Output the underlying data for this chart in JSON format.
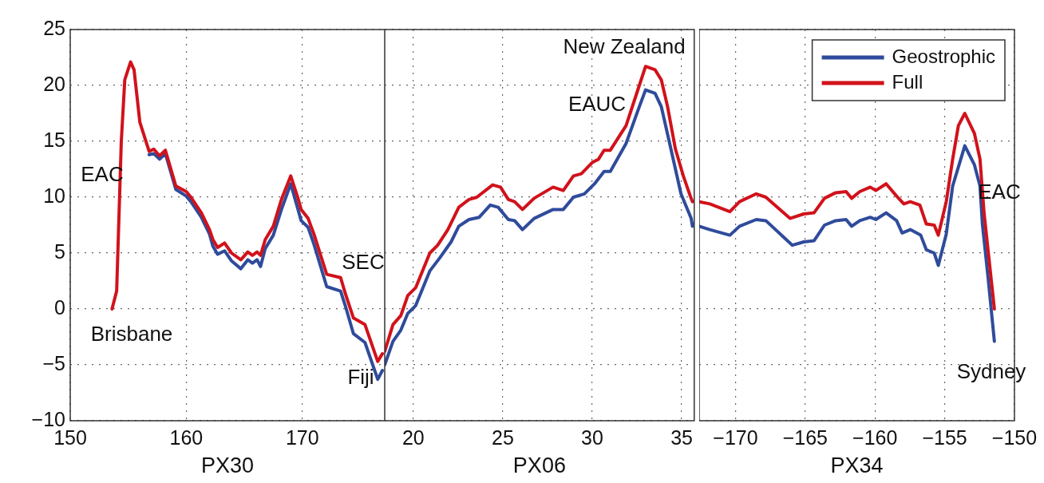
{
  "chart_data": [
    {
      "type": "line",
      "xlabel": "PX30",
      "xlim": [
        150,
        177.1
      ],
      "xticks": [
        150,
        160,
        170
      ],
      "ylim": [
        -10,
        25
      ],
      "yticks": [
        25,
        20,
        15,
        10,
        5,
        0,
        {
          "value": -5,
          "label": "−5"
        },
        {
          "value": -10,
          "label": "−10"
        }
      ],
      "grid": true,
      "marker": "none",
      "line_style": "solid",
      "annotations": [
        "EAC",
        "Brisbane",
        "Fiji"
      ],
      "series": [
        {
          "color": "#2f4b9b",
          "x": [
            156.8,
            157.2,
            157.7,
            158.2,
            159.1,
            160.0,
            160.4,
            161.3,
            162.0,
            162.3,
            162.7,
            163.3,
            163.9,
            164.7,
            165.3,
            165.7,
            166.1,
            166.4,
            166.8,
            167.5,
            168.2,
            169.0,
            169.6,
            169.9,
            170.5,
            171.0,
            172.1,
            173.3,
            173.7,
            174.4,
            175.4,
            176.5,
            176.9
          ],
          "values": [
            13.8,
            13.9,
            13.4,
            13.9,
            10.7,
            10.1,
            9.6,
            8.2,
            6.7,
            5.6,
            4.9,
            5.2,
            4.3,
            3.6,
            4.4,
            4.1,
            4.4,
            3.8,
            5.4,
            6.6,
            8.9,
            11.2,
            9,
            7.9,
            7.3,
            5.8,
            2,
            1.6,
            0.3,
            -2.2,
            -3,
            -6.3,
            -5.5
          ]
        },
        {
          "color": "#d1121b",
          "x": [
            153.6,
            154.0,
            154.4,
            154.7,
            155.2,
            155.5,
            156.0,
            156.8,
            157.2,
            157.7,
            158.2,
            159.1,
            160.0,
            160.4,
            161.3,
            162.0,
            162.3,
            162.7,
            163.3,
            163.9,
            164.7,
            165.3,
            165.7,
            166.1,
            166.4,
            166.8,
            167.5,
            168.2,
            169.0,
            169.6,
            169.9,
            170.5,
            171.0,
            172.1,
            173.3,
            173.7,
            174.4,
            175.4,
            176.5,
            176.9
          ],
          "values": [
            0,
            1.6,
            15,
            20.5,
            22.1,
            21.4,
            16.7,
            14.1,
            14.3,
            13.7,
            14.2,
            11,
            10.5,
            10,
            8.6,
            7.1,
            6.2,
            5.5,
            5.9,
            5,
            4.4,
            5.1,
            4.8,
            5.1,
            4.8,
            6.2,
            7.4,
            9.8,
            11.9,
            10,
            8.9,
            8.1,
            6.7,
            3.1,
            2.8,
            1.4,
            -0.8,
            -1.4,
            -4.7,
            -4
          ]
        }
      ]
    },
    {
      "type": "line",
      "xlabel": "PX06",
      "xlim": [
        18.4,
        35.7
      ],
      "xticks": [
        20,
        25,
        30,
        35
      ],
      "ylim": [
        -10,
        25
      ],
      "yticks": [
        25,
        20,
        15,
        10,
        5,
        0,
        -5,
        -10
      ],
      "tick_labels": "x",
      "grid": true,
      "marker": "none",
      "line_style": "solid",
      "annotations": [
        "SEC",
        "New Zealand",
        "EAUC"
      ],
      "series": [
        {
          "color": "#2f4b9b",
          "x": [
            18.4,
            18.86,
            19.3,
            19.69,
            20.13,
            20.92,
            21.49,
            22.11,
            22.54,
            23.11,
            23.68,
            24.3,
            24.74,
            25.31,
            25.66,
            26.1,
            26.75,
            27.81,
            28.38,
            28.95,
            29.56,
            30.13,
            30.66,
            31.01,
            31.89,
            32.63,
            32.98,
            33.51,
            33.86,
            34.3,
            34.96,
            35.53,
            35.6
          ],
          "values": [
            -5,
            -2.9,
            -1.9,
            -0.4,
            0.3,
            3.4,
            4.6,
            6,
            7.4,
            8,
            8.2,
            9.3,
            9.1,
            8,
            7.9,
            7.1,
            8.1,
            8.9,
            8.9,
            10,
            10.3,
            11.2,
            12.3,
            12.3,
            14.8,
            18.1,
            19.6,
            19.3,
            18.1,
            15,
            10.3,
            8.1,
            7.4
          ]
        },
        {
          "color": "#d1121b",
          "x": [
            18.4,
            18.86,
            19.3,
            19.69,
            20.13,
            20.92,
            21.36,
            21.93,
            22.54,
            23.11,
            23.55,
            24.43,
            24.87,
            25.31,
            25.66,
            26.1,
            26.75,
            27.81,
            28.38,
            28.95,
            29.39,
            30,
            30.35,
            30.66,
            31.01,
            31.89,
            32.63,
            32.98,
            33.51,
            33.86,
            34.21,
            34.65,
            35.09,
            35.48,
            35.6
          ],
          "values": [
            -3.8,
            -1.4,
            -0.6,
            1.2,
            1.9,
            5,
            5.7,
            7.1,
            9.1,
            9.8,
            10,
            11.1,
            10.9,
            9.8,
            9.6,
            8.9,
            9.9,
            10.9,
            10.6,
            11.9,
            12.1,
            13.1,
            13.4,
            14.2,
            14.2,
            16.4,
            20,
            21.7,
            21.4,
            20.5,
            18.1,
            14.3,
            11.9,
            10.1,
            9.6
          ]
        }
      ]
    },
    {
      "type": "line",
      "xlabel": "PX34",
      "xlim": [
        -172.6,
        -150
      ],
      "xticks": [
        {
          "value": -170,
          "label": "−170"
        },
        {
          "value": -165,
          "label": "−165"
        },
        {
          "value": -160,
          "label": "−160"
        },
        {
          "value": -155,
          "label": "−155"
        },
        {
          "value": -150,
          "label": "−150"
        }
      ],
      "ylim": [
        -10,
        25
      ],
      "yticks": [
        25,
        20,
        15,
        10,
        5,
        0,
        -5,
        -10
      ],
      "tick_labels": "x",
      "grid": true,
      "marker": "none",
      "line_style": "solid",
      "legend": "top right",
      "annotations": [
        "EAC",
        "Sydney"
      ],
      "series": [
        {
          "name": "Geostrophic",
          "color": "#2f4b9b",
          "x": [
            -172.6,
            -171.84,
            -170.4,
            -169.71,
            -168.51,
            -167.82,
            -165.92,
            -165.11,
            -164.37,
            -163.62,
            -162.82,
            -162.07,
            -161.67,
            -161.09,
            -160.34,
            -159.94,
            -159.2,
            -158.45,
            -158.05,
            -157.47,
            -156.72,
            -156.32,
            -155.75,
            -155.46,
            -154.89,
            -154.43,
            -153.56,
            -152.87,
            -152.47,
            -152.3,
            -151.9,
            -151.44
          ],
          "values": [
            7.4,
            7.1,
            6.6,
            7.4,
            8,
            7.9,
            5.7,
            6,
            6.1,
            7.5,
            7.9,
            8,
            7.4,
            7.9,
            8.2,
            8,
            8.6,
            7.9,
            6.8,
            7.1,
            6.6,
            5.3,
            5,
            3.9,
            6.7,
            11,
            14.6,
            12.9,
            11,
            7.6,
            2.9,
            -2.9
          ]
        },
        {
          "name": "Full",
          "color": "#d1121b",
          "x": [
            -172.6,
            -171.84,
            -170.4,
            -169.71,
            -168.51,
            -167.82,
            -166.09,
            -165.11,
            -164.37,
            -163.62,
            -162.82,
            -162.07,
            -161.67,
            -161.09,
            -160.34,
            -159.94,
            -159.2,
            -158.45,
            -157.93,
            -157.47,
            -156.78,
            -156.32,
            -155.75,
            -155.46,
            -154.89,
            -154.43,
            -154.02,
            -153.56,
            -152.87,
            -152.47,
            -152.18,
            -151.44
          ],
          "values": [
            9.6,
            9.4,
            8.7,
            9.6,
            10.3,
            10,
            8.1,
            8.5,
            8.6,
            9.9,
            10.4,
            10.5,
            9.9,
            10.5,
            10.9,
            10.6,
            11.2,
            10.1,
            9.4,
            9.6,
            9.3,
            7.6,
            7.5,
            6.6,
            9.6,
            13.4,
            16.4,
            17.5,
            15.7,
            13.4,
            8.6,
            0
          ]
        }
      ]
    }
  ]
}
